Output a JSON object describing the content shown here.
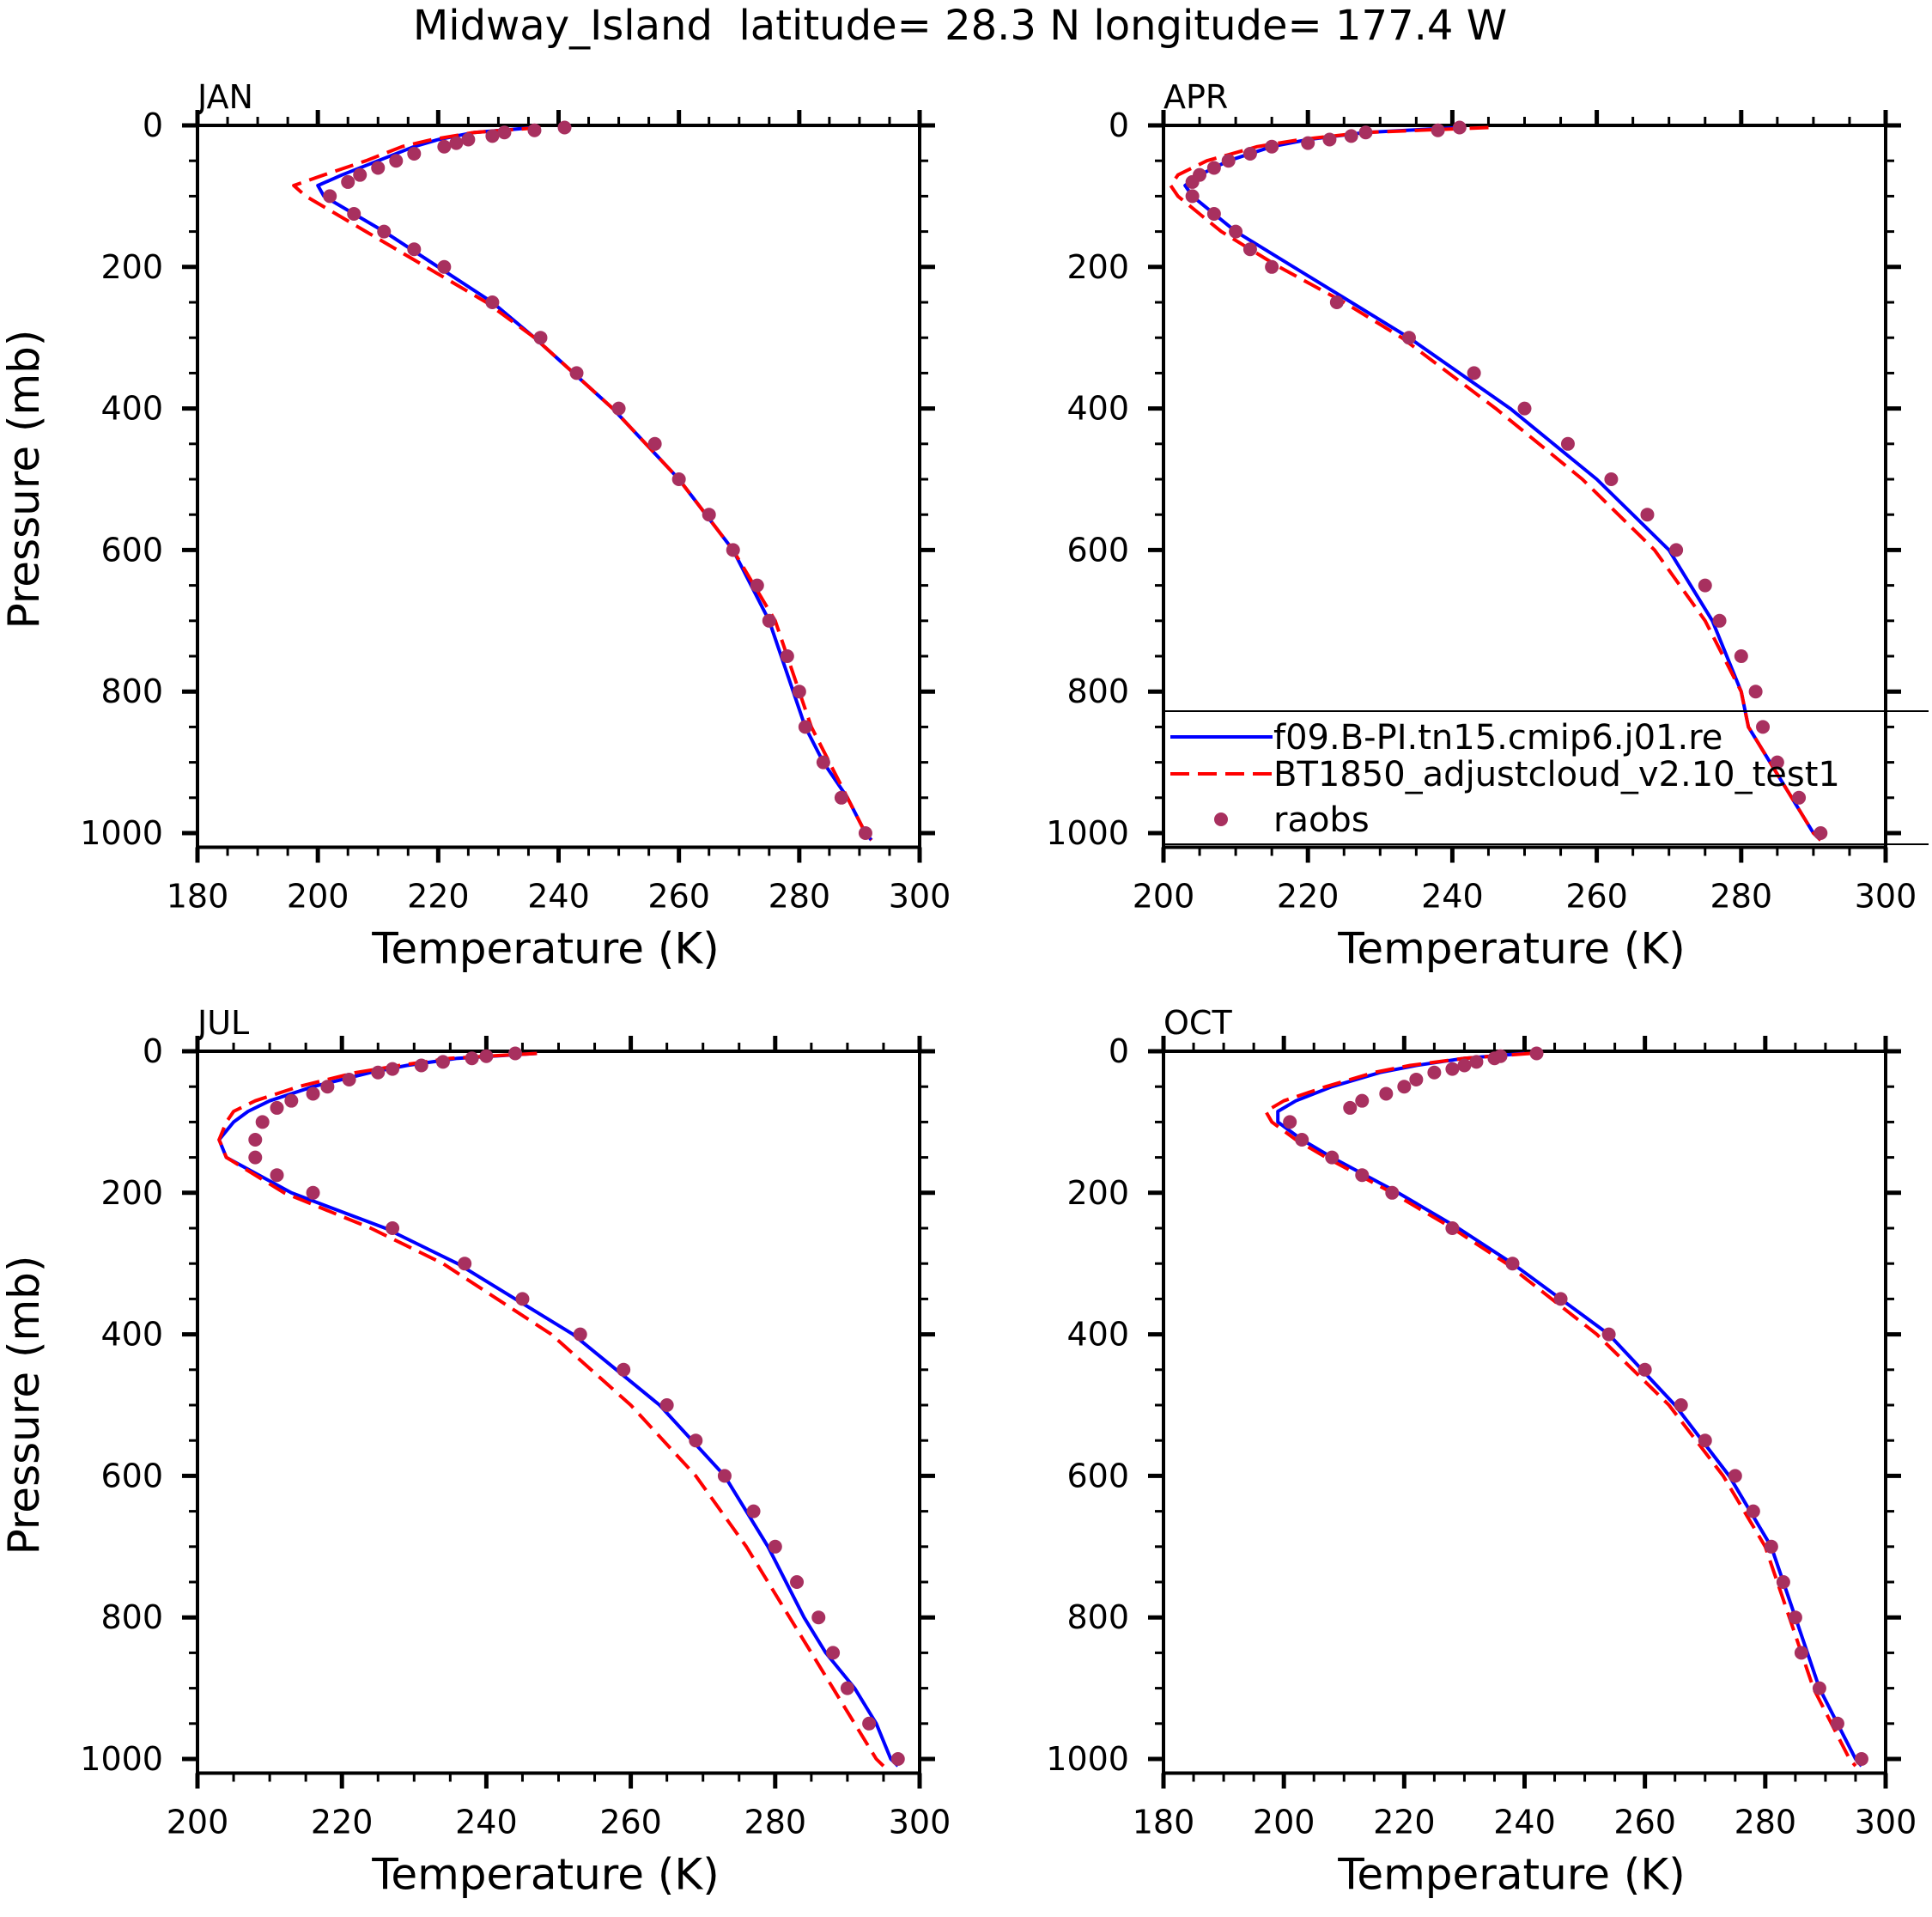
{
  "chart_data": {
    "title": "Midway_Island  latitude= 28.3 N longitude= 177.4 W",
    "type": "line",
    "legend": {
      "placement": "inside APR panel, bottom-right",
      "entries": [
        {
          "label": "f09.B-PI.tn15.cmip6.j01.re",
          "style": "solid",
          "color": "#0000ff"
        },
        {
          "label": "BT1850_adjustcloud_v2.10_test1",
          "style": "dashed",
          "color": "#ff0000"
        },
        {
          "label": "raobs",
          "style": "dots",
          "color": "#a8305f"
        }
      ]
    },
    "model_pressure": [
      3,
      10,
      20,
      30,
      50,
      70,
      85,
      100,
      125,
      150,
      200,
      250,
      300,
      400,
      500,
      600,
      700,
      800,
      850,
      900,
      950,
      1000,
      1010
    ],
    "obs_pressure": [
      3,
      7,
      10,
      15,
      20,
      25,
      30,
      40,
      50,
      60,
      70,
      80,
      100,
      125,
      150,
      175,
      200,
      250,
      300,
      350,
      400,
      450,
      500,
      550,
      600,
      650,
      700,
      750,
      800,
      850,
      900,
      950,
      1000
    ],
    "panels": [
      {
        "label": "JAN",
        "xlabel": "Temperature (K)",
        "ylabel": "Pressure (mb)",
        "xlim": [
          180,
          300
        ],
        "ylim": [
          0,
          1020
        ],
        "xticks": [
          "180",
          "200",
          "220",
          "240",
          "260",
          "280",
          "300"
        ],
        "yticks": [
          "0",
          "200",
          "400",
          "600",
          "800",
          "1000"
        ],
        "series": [
          {
            "name": "f09.B-PI.tn15.cmip6.j01.re",
            "values": [
              236,
              226,
              220,
              216,
              210,
              204,
              200,
              201,
              206,
              211,
              220,
              229,
              236,
              249,
              260,
              269,
              275,
              279,
              281,
              284,
              288,
              291,
              292
            ]
          },
          {
            "name": "BT1850_adjustcloud_v2.10_test1",
            "values": [
              237,
              226,
              219,
              214,
              208,
              201,
              196,
              198,
              203,
              208,
              218,
              228,
              236,
              249,
              260,
              269,
              276,
              280,
              282,
              285,
              288,
              291,
              292
            ]
          },
          {
            "name": "raobs",
            "values": [
              241,
              236,
              231,
              229,
              225,
              223,
              221,
              216,
              213,
              210,
              207,
              205,
              202,
              206,
              211,
              216,
              221,
              229,
              237,
              243,
              250,
              256,
              260,
              265,
              269,
              273,
              275,
              278,
              280,
              281,
              284,
              287,
              291
            ]
          }
        ]
      },
      {
        "label": "APR",
        "xlabel": "Temperature (K)",
        "ylabel": "",
        "xlim": [
          200,
          300
        ],
        "ylim": [
          0,
          1020
        ],
        "xticks": [
          "200",
          "220",
          "240",
          "260",
          "280",
          "300"
        ],
        "yticks": [
          "0",
          "200",
          "400",
          "600",
          "800",
          "1000"
        ],
        "series": [
          {
            "name": "f09.B-PI.tn15.cmip6.j01.re",
            "values": [
              241,
              228,
              220,
              215,
              209,
              205,
              203,
              204,
              207,
              210,
              218,
              226,
              234,
              248,
              260,
              270,
              276,
              280,
              281,
              284,
              287,
              290,
              291
            ]
          },
          {
            "name": "BT1850_adjustcloud_v2.10_test1",
            "values": [
              245,
              228,
              219,
              213,
              206,
              202,
              201,
              202,
              205,
              208,
              216,
              225,
              233,
              246,
              258,
              268,
              275,
              280,
              281,
              284,
              287,
              290,
              291
            ]
          },
          {
            "name": "raobs",
            "values": [
              241,
              238,
              228,
              226,
              223,
              220,
              215,
              212,
              209,
              207,
              205,
              204,
              204,
              207,
              210,
              212,
              215,
              224,
              234,
              243,
              250,
              256,
              262,
              267,
              271,
              275,
              277,
              280,
              282,
              283,
              285,
              288,
              291
            ]
          }
        ]
      },
      {
        "label": "JUL",
        "xlabel": "Temperature (K)",
        "ylabel": "Pressure (mb)",
        "xlim": [
          200,
          300
        ],
        "ylim": [
          0,
          1020
        ],
        "xticks": [
          "200",
          "220",
          "240",
          "260",
          "280",
          "300"
        ],
        "yticks": [
          "0",
          "200",
          "400",
          "600",
          "800",
          "1000"
        ],
        "series": [
          {
            "name": "f09.B-PI.tn15.cmip6.j01.re",
            "values": [
              247,
              236,
              229,
              224,
              216,
              210,
              207,
              205,
              203,
              204,
              213,
              226,
              236,
              252,
              264,
              273,
              279,
              284,
              287,
              291,
              294,
              296,
              297
            ]
          },
          {
            "name": "BT1850_adjustcloud_v2.10_test1",
            "values": [
              247,
              235,
              228,
              222,
              214,
              208,
              205,
              204,
              203,
              204,
              212,
              224,
              234,
              249,
              260,
              269,
              276,
              282,
              285,
              288,
              291,
              294,
              295
            ]
          },
          {
            "name": "raobs",
            "values": [
              244,
              240,
              238,
              234,
              231,
              227,
              225,
              221,
              218,
              216,
              213,
              211,
              209,
              208,
              208,
              211,
              216,
              227,
              237,
              245,
              253,
              259,
              265,
              269,
              273,
              277,
              280,
              283,
              286,
              288,
              290,
              293,
              297
            ]
          }
        ]
      },
      {
        "label": "OCT",
        "xlabel": "Temperature (K)",
        "ylabel": "",
        "xlim": [
          180,
          300
        ],
        "ylim": [
          0,
          1020
        ],
        "xticks": [
          "180",
          "200",
          "220",
          "240",
          "260",
          "280",
          "300"
        ],
        "yticks": [
          "0",
          "200",
          "400",
          "600",
          "800",
          "1000"
        ],
        "series": [
          {
            "name": "f09.B-PI.tn15.cmip6.j01.re",
            "values": [
              240,
              230,
              222,
              216,
              208,
              202,
              199,
              199,
              203,
              208,
              219,
              229,
              238,
              254,
              265,
              274,
              281,
              285,
              287,
              289,
              292,
              295,
              296
            ]
          },
          {
            "name": "BT1850_adjustcloud_v2.10_test1",
            "values": [
              241,
              230,
              221,
              215,
              207,
              200,
              197,
              198,
              202,
              207,
              218,
              228,
              237,
              252,
              264,
              273,
              280,
              284,
              286,
              288,
              291,
              294,
              295
            ]
          },
          {
            "name": "raobs",
            "values": [
              242,
              236,
              235,
              232,
              230,
              228,
              225,
              222,
              220,
              217,
              213,
              211,
              201,
              203,
              208,
              213,
              218,
              228,
              238,
              246,
              254,
              260,
              266,
              270,
              275,
              278,
              281,
              283,
              285,
              286,
              289,
              292,
              296
            ]
          }
        ]
      }
    ],
    "colors": {
      "model1": "#0000ff",
      "model2": "#ff0000",
      "obs": "#a8305f"
    }
  }
}
